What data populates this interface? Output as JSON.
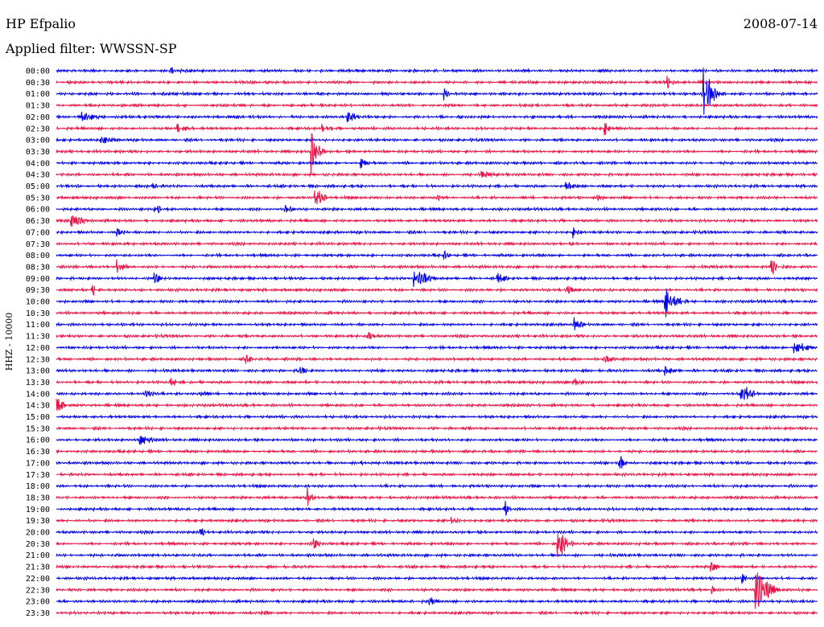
{
  "chart_data": {
    "type": "line",
    "title": "HP Efpalio",
    "date": "2008-07-14",
    "subtitle": "Applied filter: WWSSN-SP",
    "ylabel": "HHZ - 10000",
    "series_colors": [
      "#0000ee",
      "#ee1144"
    ],
    "rows": [
      "00:00",
      "00:30",
      "01:00",
      "01:30",
      "02:00",
      "02:30",
      "03:00",
      "03:30",
      "04:00",
      "04:30",
      "05:00",
      "05:30",
      "06:00",
      "06:30",
      "07:00",
      "07:30",
      "08:00",
      "08:30",
      "09:00",
      "09:30",
      "10:00",
      "10:30",
      "11:00",
      "11:30",
      "12:00",
      "12:30",
      "13:00",
      "13:30",
      "14:00",
      "14:30",
      "15:00",
      "15:30",
      "16:00",
      "16:30",
      "17:00",
      "17:30",
      "18:00",
      "18:30",
      "19:00",
      "19:30",
      "20:00",
      "20:30",
      "21:00",
      "21:30",
      "22:00",
      "22:30",
      "23:00",
      "23:30"
    ],
    "events": [
      {
        "row": 0,
        "t": 0.15,
        "amp": 0.8,
        "dur": 0.05
      },
      {
        "row": 1,
        "t": 0.802,
        "amp": 1.6,
        "dur": 0.01
      },
      {
        "row": 2,
        "t": 0.85,
        "amp": 5.5,
        "dur": 0.03
      },
      {
        "row": 2,
        "t": 0.51,
        "amp": 1.4,
        "dur": 0.01
      },
      {
        "row": 4,
        "t": 0.035,
        "amp": 2.0,
        "dur": 0.03
      },
      {
        "row": 4,
        "t": 0.38,
        "amp": 1.2,
        "dur": 0.05
      },
      {
        "row": 5,
        "t": 0.16,
        "amp": 1.0,
        "dur": 0.04
      },
      {
        "row": 5,
        "t": 0.35,
        "amp": 1.0,
        "dur": 0.03
      },
      {
        "row": 5,
        "t": 0.72,
        "amp": 1.8,
        "dur": 0.02
      },
      {
        "row": 6,
        "t": 0.06,
        "amp": 0.8,
        "dur": 0.06
      },
      {
        "row": 7,
        "t": 0.335,
        "amp": 5.0,
        "dur": 0.02
      },
      {
        "row": 8,
        "t": 0.4,
        "amp": 1.2,
        "dur": 0.02
      },
      {
        "row": 9,
        "t": 0.56,
        "amp": 0.9,
        "dur": 0.04
      },
      {
        "row": 10,
        "t": 0.12,
        "amp": 1.0,
        "dur": 0.03
      },
      {
        "row": 10,
        "t": 0.67,
        "amp": 1.0,
        "dur": 0.03
      },
      {
        "row": 11,
        "t": 0.34,
        "amp": 2.4,
        "dur": 0.02
      },
      {
        "row": 11,
        "t": 0.5,
        "amp": 1.0,
        "dur": 0.02
      },
      {
        "row": 11,
        "t": 0.71,
        "amp": 0.8,
        "dur": 0.03
      },
      {
        "row": 12,
        "t": 0.13,
        "amp": 1.0,
        "dur": 0.04
      },
      {
        "row": 12,
        "t": 0.3,
        "amp": 0.9,
        "dur": 0.03
      },
      {
        "row": 13,
        "t": 0.02,
        "amp": 1.2,
        "dur": 0.05
      },
      {
        "row": 14,
        "t": 0.08,
        "amp": 1.0,
        "dur": 0.02
      },
      {
        "row": 14,
        "t": 0.68,
        "amp": 1.2,
        "dur": 0.01
      },
      {
        "row": 16,
        "t": 0.51,
        "amp": 0.9,
        "dur": 0.01
      },
      {
        "row": 17,
        "t": 0.08,
        "amp": 1.8,
        "dur": 0.02
      },
      {
        "row": 17,
        "t": 0.94,
        "amp": 2.0,
        "dur": 0.02
      },
      {
        "row": 18,
        "t": 0.47,
        "amp": 3.2,
        "dur": 0.03
      },
      {
        "row": 18,
        "t": 0.13,
        "amp": 1.2,
        "dur": 0.02
      },
      {
        "row": 18,
        "t": 0.58,
        "amp": 1.4,
        "dur": 0.02
      },
      {
        "row": 19,
        "t": 0.045,
        "amp": 1.5,
        "dur": 0.02
      },
      {
        "row": 19,
        "t": 0.67,
        "amp": 1.0,
        "dur": 0.02
      },
      {
        "row": 20,
        "t": 0.8,
        "amp": 3.5,
        "dur": 0.03
      },
      {
        "row": 22,
        "t": 0.68,
        "amp": 1.6,
        "dur": 0.02
      },
      {
        "row": 23,
        "t": 0.41,
        "amp": 1.1,
        "dur": 0.02
      },
      {
        "row": 24,
        "t": 0.97,
        "amp": 2.2,
        "dur": 0.03
      },
      {
        "row": 25,
        "t": 0.25,
        "amp": 1.4,
        "dur": 0.01
      },
      {
        "row": 25,
        "t": 0.72,
        "amp": 1.0,
        "dur": 0.03
      },
      {
        "row": 26,
        "t": 0.32,
        "amp": 1.6,
        "dur": 0.01
      },
      {
        "row": 26,
        "t": 0.8,
        "amp": 1.0,
        "dur": 0.04
      },
      {
        "row": 27,
        "t": 0.15,
        "amp": 1.2,
        "dur": 0.02
      },
      {
        "row": 27,
        "t": 0.68,
        "amp": 1.6,
        "dur": 0.02
      },
      {
        "row": 28,
        "t": 0.115,
        "amp": 2.0,
        "dur": 0.02
      },
      {
        "row": 28,
        "t": 0.9,
        "amp": 2.4,
        "dur": 0.03
      },
      {
        "row": 28,
        "t": 0.19,
        "amp": 1.0,
        "dur": 0.02
      },
      {
        "row": 29,
        "t": 0.0,
        "amp": 1.6,
        "dur": 0.03
      },
      {
        "row": 32,
        "t": 0.11,
        "amp": 1.6,
        "dur": 0.03
      },
      {
        "row": 34,
        "t": 0.4,
        "amp": 1.2,
        "dur": 0.02
      },
      {
        "row": 34,
        "t": 0.74,
        "amp": 2.0,
        "dur": 0.01
      },
      {
        "row": 37,
        "t": 0.33,
        "amp": 2.6,
        "dur": 0.01
      },
      {
        "row": 38,
        "t": 0.59,
        "amp": 1.6,
        "dur": 0.01
      },
      {
        "row": 39,
        "t": 0.52,
        "amp": 0.9,
        "dur": 0.03
      },
      {
        "row": 40,
        "t": 0.19,
        "amp": 0.9,
        "dur": 0.02
      },
      {
        "row": 41,
        "t": 0.66,
        "amp": 3.8,
        "dur": 0.02
      },
      {
        "row": 41,
        "t": 0.335,
        "amp": 1.6,
        "dur": 0.02
      },
      {
        "row": 43,
        "t": 0.86,
        "amp": 1.2,
        "dur": 0.02
      },
      {
        "row": 44,
        "t": 0.9,
        "amp": 1.4,
        "dur": 0.01
      },
      {
        "row": 45,
        "t": 0.92,
        "amp": 6.0,
        "dur": 0.03
      },
      {
        "row": 45,
        "t": 0.86,
        "amp": 1.2,
        "dur": 0.01
      },
      {
        "row": 46,
        "t": 0.49,
        "amp": 1.4,
        "dur": 0.01
      },
      {
        "row": 47,
        "t": 0.27,
        "amp": 1.4,
        "dur": 0.01
      }
    ]
  }
}
